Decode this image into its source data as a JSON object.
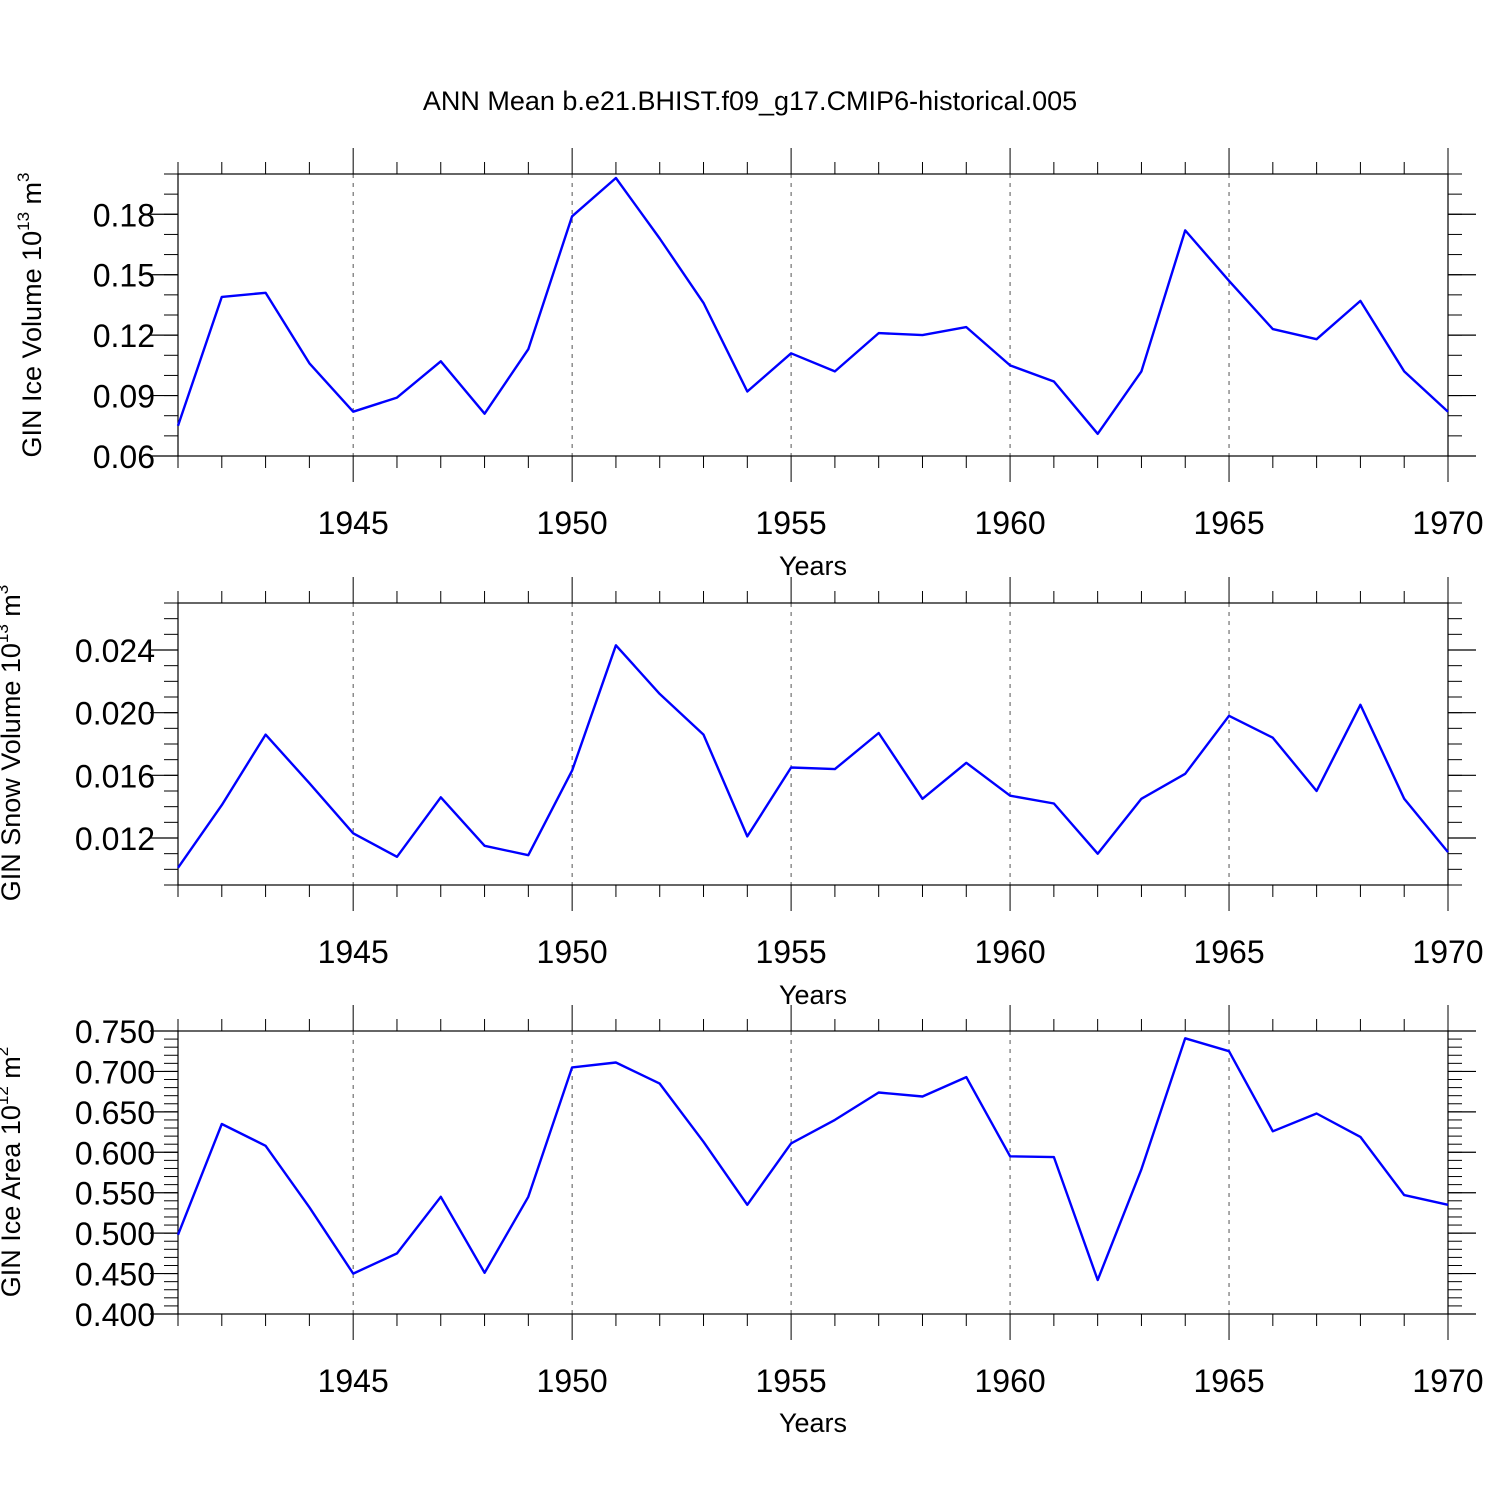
{
  "title": "ANN Mean b.e21.BHIST.f09_g17.CMIP6-historical.005",
  "line_color": "#0000ff",
  "x_ticks": [
    "1945",
    "1950",
    "1955",
    "1960",
    "1965",
    "1970"
  ],
  "chart_data": [
    {
      "type": "line",
      "ylabel": {
        "prefix": "GIN Ice Volume 10",
        "exp1": "13",
        "mid": " m",
        "exp2": "3"
      },
      "xlabel": "Years",
      "xlim": [
        1941,
        1970
      ],
      "ylim": [
        0.06,
        0.2
      ],
      "y_ticks": [
        "0.06",
        "0.09",
        "0.12",
        "0.15",
        "0.18"
      ],
      "x": [
        1941,
        1942,
        1943,
        1944,
        1945,
        1946,
        1947,
        1948,
        1949,
        1950,
        1951,
        1952,
        1953,
        1954,
        1955,
        1956,
        1957,
        1958,
        1959,
        1960,
        1961,
        1962,
        1963,
        1964,
        1965,
        1966,
        1967,
        1968,
        1969,
        1970
      ],
      "values": [
        0.075,
        0.139,
        0.141,
        0.106,
        0.082,
        0.089,
        0.107,
        0.081,
        0.113,
        0.179,
        0.198,
        0.168,
        0.136,
        0.092,
        0.111,
        0.102,
        0.121,
        0.12,
        0.124,
        0.105,
        0.097,
        0.071,
        0.102,
        0.172,
        0.147,
        0.123,
        0.118,
        0.137,
        0.102,
        0.082
      ]
    },
    {
      "type": "line",
      "ylabel": {
        "prefix": "GIN Snow Volume 10",
        "exp1": "13",
        "mid": " m",
        "exp2": "3"
      },
      "xlabel": "Years",
      "xlim": [
        1941,
        1970
      ],
      "ylim": [
        0.009,
        0.027
      ],
      "y_ticks": [
        "0.012",
        "0.016",
        "0.020",
        "0.024"
      ],
      "x": [
        1941,
        1942,
        1943,
        1944,
        1945,
        1946,
        1947,
        1948,
        1949,
        1950,
        1951,
        1952,
        1953,
        1954,
        1955,
        1956,
        1957,
        1958,
        1959,
        1960,
        1961,
        1962,
        1963,
        1964,
        1965,
        1966,
        1967,
        1968,
        1969,
        1970
      ],
      "values": [
        0.0101,
        0.0141,
        0.0186,
        0.0155,
        0.0123,
        0.0108,
        0.0146,
        0.0115,
        0.0109,
        0.0163,
        0.0243,
        0.0212,
        0.0186,
        0.0121,
        0.0165,
        0.0164,
        0.0187,
        0.0145,
        0.0168,
        0.0147,
        0.0142,
        0.011,
        0.0145,
        0.0161,
        0.0198,
        0.0184,
        0.015,
        0.0205,
        0.0145,
        0.0111
      ]
    },
    {
      "type": "line",
      "ylabel": {
        "prefix": "GIN Ice Area 10",
        "exp1": "12",
        "mid": " m",
        "exp2": "2"
      },
      "xlabel": "Years",
      "xlim": [
        1941,
        1970
      ],
      "ylim": [
        0.4,
        0.75
      ],
      "y_ticks": [
        "0.400",
        "0.450",
        "0.500",
        "0.550",
        "0.600",
        "0.650",
        "0.700",
        "0.750"
      ],
      "x": [
        1941,
        1942,
        1943,
        1944,
        1945,
        1946,
        1947,
        1948,
        1949,
        1950,
        1951,
        1952,
        1953,
        1954,
        1955,
        1956,
        1957,
        1958,
        1959,
        1960,
        1961,
        1962,
        1963,
        1964,
        1965,
        1966,
        1967,
        1968,
        1969,
        1970
      ],
      "values": [
        0.498,
        0.635,
        0.608,
        0.532,
        0.45,
        0.475,
        0.545,
        0.451,
        0.545,
        0.705,
        0.711,
        0.685,
        0.613,
        0.535,
        0.611,
        0.64,
        0.674,
        0.669,
        0.693,
        0.595,
        0.594,
        0.442,
        0.579,
        0.741,
        0.725,
        0.626,
        0.648,
        0.619,
        0.547,
        0.535
      ]
    }
  ]
}
